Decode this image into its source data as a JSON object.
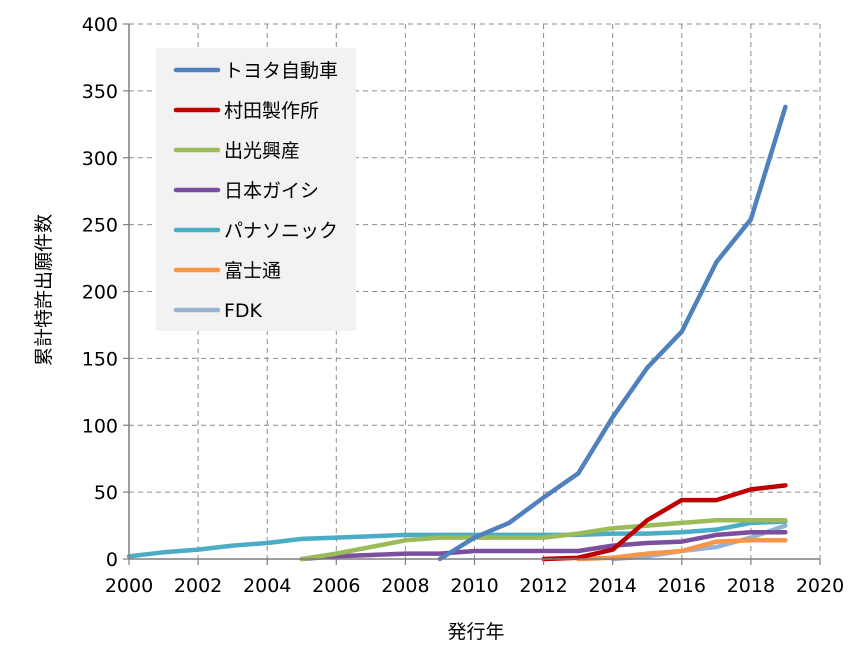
{
  "chart_data": {
    "type": "line",
    "xlabel": "発行年",
    "ylabel": "累計特許出願件数",
    "xlim": [
      2000,
      2020
    ],
    "ylim": [
      0,
      400
    ],
    "xticks": [
      2000,
      2002,
      2004,
      2006,
      2008,
      2010,
      2012,
      2014,
      2016,
      2018,
      2020
    ],
    "yticks": [
      0,
      50,
      100,
      150,
      200,
      250,
      300,
      350,
      400
    ],
    "grid": true,
    "legend_position": "top-left",
    "series": [
      {
        "name": "トヨタ自動車",
        "color": "#4f81bd",
        "points": [
          [
            2009,
            0
          ],
          [
            2010,
            16
          ],
          [
            2011,
            27
          ],
          [
            2012,
            46
          ],
          [
            2013,
            64
          ],
          [
            2014,
            106
          ],
          [
            2015,
            143
          ],
          [
            2016,
            170
          ],
          [
            2017,
            222
          ],
          [
            2018,
            254
          ],
          [
            2019,
            338
          ]
        ]
      },
      {
        "name": "村田製作所",
        "color": "#c00000",
        "points": [
          [
            2012,
            0
          ],
          [
            2013,
            1
          ],
          [
            2014,
            7
          ],
          [
            2015,
            29
          ],
          [
            2016,
            44
          ],
          [
            2017,
            44
          ],
          [
            2018,
            52
          ],
          [
            2019,
            55
          ]
        ]
      },
      {
        "name": "出光興産",
        "color": "#9bbb59",
        "points": [
          [
            2005,
            0
          ],
          [
            2006,
            4
          ],
          [
            2007,
            9
          ],
          [
            2008,
            14
          ],
          [
            2009,
            16
          ],
          [
            2010,
            16
          ],
          [
            2011,
            16
          ],
          [
            2012,
            16
          ],
          [
            2013,
            19
          ],
          [
            2014,
            23
          ],
          [
            2015,
            25
          ],
          [
            2016,
            27
          ],
          [
            2017,
            29
          ],
          [
            2018,
            29
          ],
          [
            2019,
            29
          ]
        ]
      },
      {
        "name": "日本ガイシ",
        "color": "#7b4f9d",
        "points": [
          [
            2005,
            0
          ],
          [
            2006,
            2
          ],
          [
            2007,
            3
          ],
          [
            2008,
            4
          ],
          [
            2009,
            4
          ],
          [
            2010,
            6
          ],
          [
            2011,
            6
          ],
          [
            2012,
            6
          ],
          [
            2013,
            6
          ],
          [
            2014,
            10
          ],
          [
            2015,
            12
          ],
          [
            2016,
            13
          ],
          [
            2017,
            18
          ],
          [
            2018,
            20
          ],
          [
            2019,
            20
          ]
        ]
      },
      {
        "name": "パナソニック",
        "color": "#4bacc6",
        "points": [
          [
            2000,
            2
          ],
          [
            2001,
            5
          ],
          [
            2002,
            7
          ],
          [
            2003,
            10
          ],
          [
            2004,
            12
          ],
          [
            2005,
            15
          ],
          [
            2006,
            16
          ],
          [
            2007,
            17
          ],
          [
            2008,
            18
          ],
          [
            2009,
            18
          ],
          [
            2010,
            18
          ],
          [
            2011,
            18
          ],
          [
            2012,
            18
          ],
          [
            2013,
            18
          ],
          [
            2014,
            19
          ],
          [
            2015,
            19
          ],
          [
            2016,
            20
          ],
          [
            2017,
            22
          ],
          [
            2018,
            27
          ],
          [
            2019,
            28
          ]
        ]
      },
      {
        "name": "富士通",
        "color": "#f79646",
        "points": [
          [
            2013,
            0
          ],
          [
            2014,
            1
          ],
          [
            2015,
            4
          ],
          [
            2016,
            6
          ],
          [
            2017,
            13
          ],
          [
            2018,
            14
          ],
          [
            2019,
            14
          ]
        ]
      },
      {
        "name": "FDK",
        "color": "#95b3d7",
        "points": [
          [
            2014,
            0
          ],
          [
            2015,
            2
          ],
          [
            2016,
            6
          ],
          [
            2017,
            9
          ],
          [
            2018,
            16
          ],
          [
            2019,
            25
          ]
        ]
      }
    ]
  }
}
